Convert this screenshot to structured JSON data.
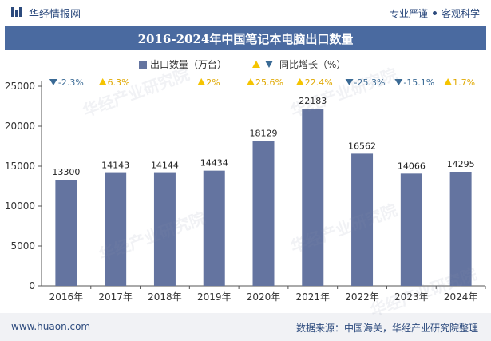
{
  "header": {
    "brand": "华经情报网",
    "tagline_left": "专业严谨",
    "tagline_right": "客观科学"
  },
  "footer": {
    "site": "www.huaon.com",
    "source": "数据来源：中国海关，华经产业研究院整理"
  },
  "watermark": "华经产业研究院",
  "colors": {
    "bar": "#6474a0",
    "up": "#f5c400",
    "down": "#3a6a95",
    "title_bg": "#4a6aa0"
  },
  "chart_data": {
    "type": "bar",
    "title": "2016-2024年中国笔记本电脑出口数量",
    "categories": [
      "2016年",
      "2017年",
      "2018年",
      "2019年",
      "2020年",
      "2021年",
      "2022年",
      "2023年",
      "2024年"
    ],
    "series": [
      {
        "name": "出口数量（万台）",
        "values": [
          13300,
          14143,
          14144,
          14434,
          18129,
          22183,
          16562,
          14066,
          14295
        ]
      }
    ],
    "growth": {
      "name": "同比增长（%）",
      "values": [
        "-2.3%",
        "6.3%",
        "",
        "2%",
        "25.6%",
        "22.4%",
        "-25.3%",
        "-15.1%",
        "1.7%"
      ],
      "direction": [
        "down",
        "up",
        "",
        "up",
        "up",
        "up",
        "down",
        "down",
        "up"
      ]
    },
    "yticks": [
      0,
      5000,
      10000,
      15000,
      20000,
      25000
    ],
    "ylim": [
      0,
      25000
    ],
    "legend_position": "top-center",
    "grid": false
  }
}
